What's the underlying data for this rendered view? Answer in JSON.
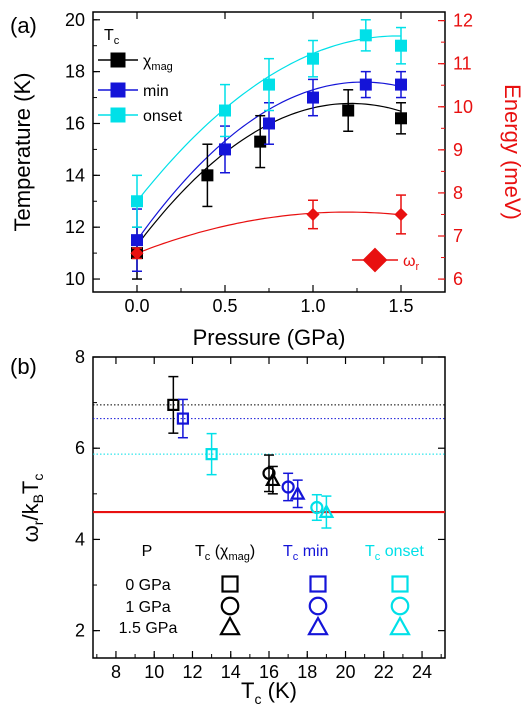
{
  "colors": {
    "chi_mag": "#000000",
    "min": "#1414d8",
    "onset": "#00e0e8",
    "energy": "#e81010",
    "guide": "#e81010"
  },
  "chart_data": [
    {
      "type": "scatter",
      "panel_label": "(a)",
      "xlabel": "Pressure (GPa)",
      "ylabel": "Temperature (K)",
      "y2label": "Energy (meV)",
      "xlim": [
        -0.25,
        1.75
      ],
      "ylim": [
        9.5,
        20.3
      ],
      "y2lim": [
        5.7,
        12.2
      ],
      "xticks": [
        "0.0",
        "0.5",
        "1.0",
        "1.5"
      ],
      "yticks": [
        "10",
        "12",
        "14",
        "16",
        "18",
        "20"
      ],
      "y2ticks": [
        "6",
        "7",
        "8",
        "9",
        "10",
        "11",
        "12"
      ],
      "legend_title": "T",
      "legend_title_sub": "c",
      "legend_position": "top-left",
      "series": [
        {
          "name": "χ",
          "name_sub": "mag",
          "color_key": "chi_mag",
          "marker": "square",
          "points": [
            {
              "x": 0.0,
              "y": 11.0,
              "err": 1.0
            },
            {
              "x": 0.4,
              "y": 14.0,
              "err": 1.2
            },
            {
              "x": 0.7,
              "y": 15.3,
              "err": 1.0
            },
            {
              "x": 1.2,
              "y": 16.5,
              "err": 0.8
            },
            {
              "x": 1.5,
              "y": 16.2,
              "err": 0.6
            }
          ],
          "fit": {
            "a": 11.3,
            "b": 9.0,
            "c": -3.7
          }
        },
        {
          "name": "min",
          "color_key": "min",
          "marker": "square",
          "points": [
            {
              "x": 0.0,
              "y": 11.5,
              "err": 1.2
            },
            {
              "x": 0.5,
              "y": 15.0,
              "err": 0.9
            },
            {
              "x": 0.75,
              "y": 16.0,
              "err": 0.8
            },
            {
              "x": 1.0,
              "y": 17.0,
              "err": 0.7
            },
            {
              "x": 1.3,
              "y": 17.5,
              "err": 0.5
            },
            {
              "x": 1.5,
              "y": 17.5,
              "err": 0.5
            }
          ],
          "fit": {
            "a": 11.5,
            "b": 9.5,
            "c": -3.7
          }
        },
        {
          "name": "onset",
          "color_key": "onset",
          "marker": "square",
          "points": [
            {
              "x": 0.0,
              "y": 13.0,
              "err": 1.0
            },
            {
              "x": 0.5,
              "y": 16.5,
              "err": 1.0
            },
            {
              "x": 0.75,
              "y": 17.5,
              "err": 1.0
            },
            {
              "x": 1.0,
              "y": 18.5,
              "err": 0.7
            },
            {
              "x": 1.3,
              "y": 19.4,
              "err": 0.6
            },
            {
              "x": 1.5,
              "y": 19.0,
              "err": 0.7
            }
          ],
          "fit": {
            "a": 13.0,
            "b": 8.6,
            "c": -2.9
          }
        },
        {
          "name": "ω",
          "name_sub": "r",
          "color_key": "energy",
          "marker": "diamond",
          "axis": "right",
          "legend_position": "bottom-right",
          "points": [
            {
              "x": 0.0,
              "y": 6.6,
              "err": 0.12
            },
            {
              "x": 1.0,
              "y": 7.5,
              "err": 0.33
            },
            {
              "x": 1.5,
              "y": 7.5,
              "err": 0.45
            }
          ],
          "fit": {
            "a": 6.6,
            "b": 1.6,
            "c": -0.67
          }
        }
      ]
    },
    {
      "type": "scatter",
      "panel_label": "(b)",
      "xlabel": "T",
      "xlabel_sub": "c",
      "xlabel_unit": " (K)",
      "ylabel": "ω",
      "ylabel_sub1": "r",
      "ylabel_mid": "/k",
      "ylabel_sub2": "B",
      "ylabel_end": "T",
      "ylabel_sub3": "c",
      "xlim": [
        6.8,
        25.2
      ],
      "ylim": [
        1.4,
        8.0
      ],
      "xticks": [
        "8",
        "10",
        "12",
        "14",
        "16",
        "18",
        "20",
        "22",
        "24"
      ],
      "yticks": [
        "2",
        "4",
        "6",
        "8"
      ],
      "reference_lines": [
        {
          "y": 4.6,
          "color_key": "guide",
          "style": "solid"
        },
        {
          "y": 6.95,
          "color_key": "chi_mag",
          "style": "dotted"
        },
        {
          "y": 6.65,
          "color_key": "min",
          "style": "dotted"
        },
        {
          "y": 5.87,
          "color_key": "onset",
          "style": "dotted"
        }
      ],
      "series": [
        {
          "name": "T",
          "name_sub": "c",
          "name_paren": " (χ",
          "name_paren_sub": "mag",
          "name_end": ")",
          "color_key": "chi_mag",
          "points": [
            {
              "x": 11.0,
              "y": 6.95,
              "err": 0.62,
              "marker": "square"
            },
            {
              "x": 16.0,
              "y": 5.45,
              "err": 0.4,
              "marker": "circle"
            },
            {
              "x": 16.2,
              "y": 5.3,
              "err": 0.3,
              "marker": "triangle"
            }
          ]
        },
        {
          "name": "T",
          "name_sub": "c",
          "name_end": " min",
          "color_key": "min",
          "points": [
            {
              "x": 11.5,
              "y": 6.65,
              "err": 0.42,
              "marker": "square"
            },
            {
              "x": 17.0,
              "y": 5.15,
              "err": 0.3,
              "marker": "circle"
            },
            {
              "x": 17.5,
              "y": 5.0,
              "err": 0.3,
              "marker": "triangle"
            }
          ]
        },
        {
          "name": "T",
          "name_sub": "c",
          "name_end": " onset",
          "color_key": "onset",
          "points": [
            {
              "x": 13.0,
              "y": 5.87,
              "err": 0.45,
              "marker": "square"
            },
            {
              "x": 18.5,
              "y": 4.7,
              "err": 0.28,
              "marker": "circle"
            },
            {
              "x": 19.0,
              "y": 4.6,
              "err": 0.35,
              "marker": "triangle"
            }
          ]
        }
      ],
      "marker_legend": {
        "header": "P",
        "rows": [
          "0 GPa",
          "1 GPa",
          "1.5 GPa"
        ],
        "markers": [
          "square",
          "circle",
          "triangle"
        ]
      }
    }
  ]
}
